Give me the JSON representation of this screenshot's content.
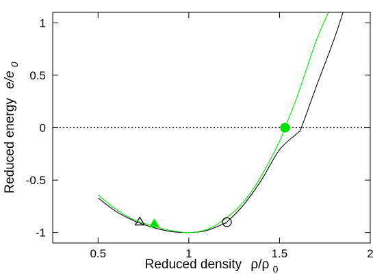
{
  "chart_data": {
    "type": "line",
    "xlabel": {
      "text": "Reduced density",
      "symbol": "ρ/ρ",
      "subscript": "0"
    },
    "ylabel": {
      "text": "Reduced energy",
      "symbol": "e/e",
      "subscript": "0"
    },
    "xlim": [
      0.25,
      2.0
    ],
    "ylim": [
      -1.1,
      1.1
    ],
    "x_ticks": [
      0.5,
      1,
      1.5,
      2
    ],
    "x_tick_labels": [
      "0.5",
      "1",
      "1.5",
      "2"
    ],
    "y_ticks": [
      -1,
      -0.5,
      0,
      0.5,
      1
    ],
    "y_tick_labels": [
      "-1",
      "-0.5",
      "0",
      "0.5",
      "1"
    ],
    "grid": false,
    "reference_line": {
      "y": 0,
      "style": "dotted",
      "color": "#000000"
    },
    "series": [
      {
        "color": "#000000",
        "x": [
          0.5,
          0.6,
          0.7,
          0.73,
          0.8,
          0.9,
          1.0,
          1.1,
          1.2,
          1.21,
          1.3,
          1.4,
          1.5,
          1.6,
          1.62,
          1.7,
          1.8,
          1.85
        ],
        "y": [
          -0.67,
          -0.8,
          -0.89,
          -0.91,
          -0.95,
          -0.99,
          -1.0,
          -0.98,
          -0.91,
          -0.9,
          -0.74,
          -0.5,
          -0.21,
          -0.05,
          0.0,
          0.38,
          0.84,
          1.1
        ]
      },
      {
        "color": "#00e000",
        "x": [
          0.5,
          0.6,
          0.7,
          0.81,
          0.9,
          1.0,
          1.1,
          1.2,
          1.3,
          1.4,
          1.5,
          1.53,
          1.6,
          1.7,
          1.77
        ],
        "y": [
          -0.64,
          -0.78,
          -0.88,
          -0.94,
          -0.98,
          -1.0,
          -0.97,
          -0.87,
          -0.71,
          -0.46,
          -0.13,
          0.0,
          0.31,
          0.82,
          1.1
        ]
      }
    ],
    "markers": [
      {
        "shape": "triangle-open",
        "color": "#000000",
        "x": 0.73,
        "y": -0.9
      },
      {
        "shape": "triangle-filled",
        "color": "#00e000",
        "x": 0.81,
        "y": -0.92
      },
      {
        "shape": "circle-open",
        "color": "#000000",
        "x": 1.21,
        "y": -0.9
      },
      {
        "shape": "circle-filled",
        "color": "#00e000",
        "x": 1.53,
        "y": 0.0
      }
    ]
  }
}
